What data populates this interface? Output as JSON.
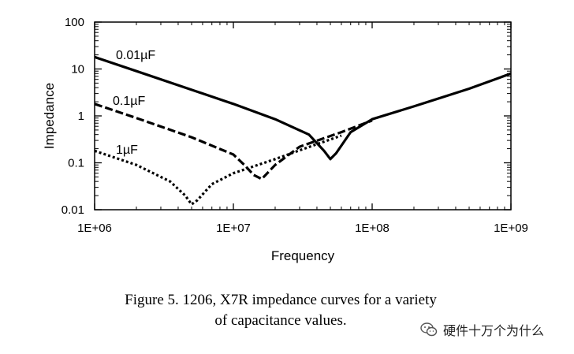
{
  "chart_data": {
    "type": "line",
    "title": "",
    "xlabel": "Frequency",
    "ylabel": "Impedance",
    "xscale": "log",
    "yscale": "log",
    "xlim": [
      1000000,
      1000000000
    ],
    "ylim": [
      0.01,
      100
    ],
    "x_ticks": [
      1000000,
      10000000,
      100000000,
      1000000000
    ],
    "x_tick_labels": [
      "1E+06",
      "1E+07",
      "1E+08",
      "1E+09"
    ],
    "y_ticks": [
      0.01,
      0.1,
      1,
      10,
      100
    ],
    "y_tick_labels": [
      "0.01",
      "0.1",
      "1",
      "10",
      "100"
    ],
    "grid": false,
    "series": [
      {
        "name": "0.01µF",
        "style": "solid",
        "x": [
          1000000,
          2000000,
          5000000,
          10000000,
          20000000,
          35000000,
          45000000,
          50000000,
          55000000,
          70000000,
          100000000,
          200000000,
          500000000,
          1000000000
        ],
        "y": [
          18,
          9,
          3.6,
          1.8,
          0.85,
          0.4,
          0.18,
          0.12,
          0.16,
          0.45,
          0.85,
          1.6,
          3.8,
          8
        ]
      },
      {
        "name": "0.1µF",
        "style": "dashed",
        "x": [
          1000000,
          2000000,
          5000000,
          10000000,
          12000000,
          14000000,
          16000000,
          20000000,
          30000000,
          60000000,
          100000000
        ],
        "y": [
          1.8,
          0.9,
          0.35,
          0.15,
          0.09,
          0.055,
          0.045,
          0.09,
          0.22,
          0.45,
          0.8
        ]
      },
      {
        "name": "1µF",
        "style": "dotted",
        "x": [
          1000000,
          2000000,
          3500000,
          4500000,
          5000000,
          5500000,
          7000000,
          10000000,
          20000000,
          40000000,
          60000000
        ],
        "y": [
          0.18,
          0.09,
          0.04,
          0.02,
          0.013,
          0.016,
          0.035,
          0.06,
          0.12,
          0.25,
          0.38
        ]
      }
    ]
  },
  "caption": {
    "line1": "Figure 5. 1206, X7R impedance curves for a variety",
    "line2": "of capacitance values."
  },
  "watermark": {
    "text": "硬件十万个为什么",
    "icon": "wechat-icon"
  }
}
